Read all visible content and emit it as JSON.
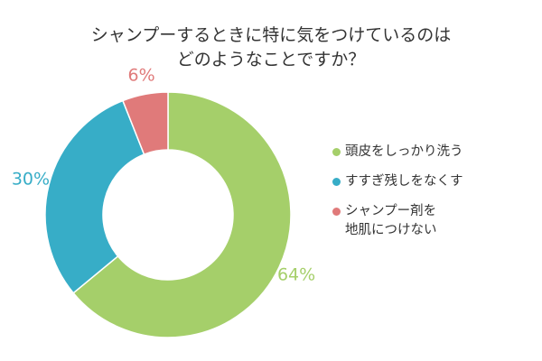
{
  "chart_data": {
    "type": "pie",
    "title_lines": [
      "シャンプーするときに特に気をつけているのは",
      "どのようなことですか？"
    ],
    "categories": [
      "頭皮をしっかり洗う",
      "すすぎ残しをなくす",
      "シャンプー剤を\n地肌につけない"
    ],
    "values": [
      64,
      30,
      6
    ],
    "value_labels": [
      "64%",
      "30%",
      "6%"
    ],
    "colors": [
      "#a5cf6a",
      "#37adc7",
      "#e07a7a"
    ],
    "donut": true,
    "legend_position": "right"
  }
}
